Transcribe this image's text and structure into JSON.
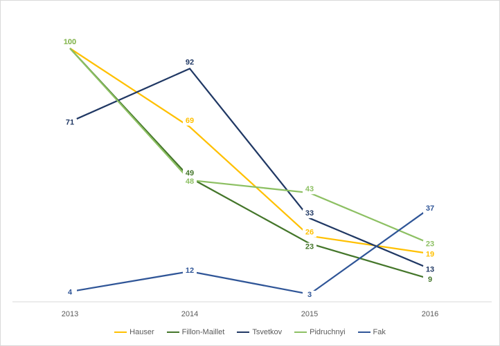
{
  "chart_data": {
    "type": "line",
    "title": "",
    "xlabel": "",
    "ylabel": "",
    "x": [
      "2013",
      "2014",
      "2015",
      "2016"
    ],
    "ylim": [
      0,
      110
    ],
    "grid": false,
    "legend_position": "bottom",
    "series": [
      {
        "name": "Hauser",
        "color": "#FFC000",
        "values": [
          100,
          69,
          26,
          19
        ]
      },
      {
        "name": "Fillon-Maillet",
        "color": "#44762A",
        "values": [
          100,
          49,
          23,
          9
        ]
      },
      {
        "name": "Tsvetkov",
        "color": "#203864",
        "values": [
          71,
          92,
          33,
          13
        ]
      },
      {
        "name": "Pidruchnyi",
        "color": "#8DC063",
        "values": [
          100,
          48,
          43,
          23
        ]
      },
      {
        "name": "Fak",
        "color": "#2F5597",
        "values": [
          4,
          12,
          3,
          37
        ]
      }
    ]
  }
}
